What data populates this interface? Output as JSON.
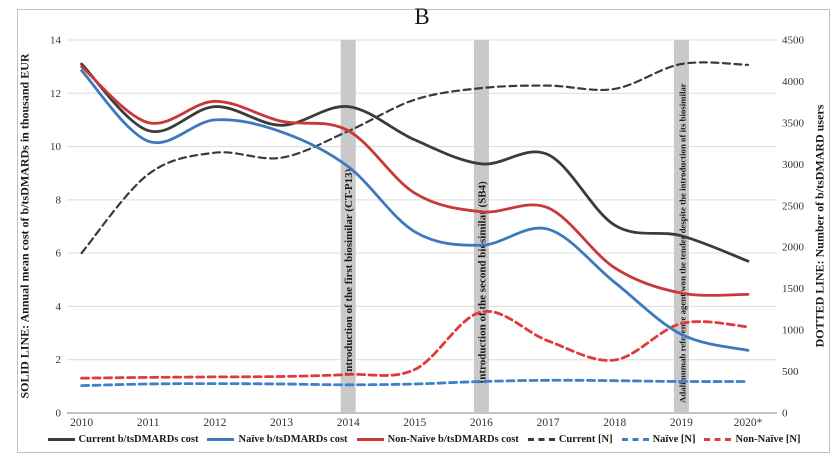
{
  "chart_data": {
    "type": "line",
    "title": "B",
    "left_axis": {
      "label": "SOLID LINE: Annual mean cost of b/tsDMARDs in thousand EUR",
      "ticks": [
        "0",
        "2",
        "4",
        "6",
        "8",
        "10",
        "12",
        "14"
      ],
      "lim": [
        0,
        14
      ]
    },
    "right_axis": {
      "label": "DOTTED LINE: Number of b/tsDMARD users",
      "ticks": [
        "0",
        "500",
        "1000",
        "1500",
        "2000",
        "2500",
        "3000",
        "3500",
        "4000",
        "4500"
      ],
      "lim": [
        0,
        4500
      ]
    },
    "x": [
      "2010",
      "2011",
      "2012",
      "2013",
      "2014",
      "2015",
      "2016",
      "2017",
      "2018",
      "2019",
      "2020*"
    ],
    "grid": true,
    "legend_position": "bottom",
    "annotations": [
      {
        "year": "2014",
        "label": "Introduction of the first biosimilar (CT-P13)"
      },
      {
        "year": "2016",
        "label": "Introduction of the second biosimilar (SB4)"
      },
      {
        "year": "2019",
        "label": "Adalimumab reference agent won the tender despite the introduction of its biosimilar"
      }
    ],
    "series": [
      {
        "name": "Current b/tsDMARDs cost",
        "axis": "left",
        "line": "solid",
        "color": "#3b3b3b",
        "values": [
          13.1,
          10.6,
          11.5,
          10.8,
          11.5,
          10.25,
          9.35,
          9.7,
          7.05,
          6.65,
          5.7
        ]
      },
      {
        "name": "Naïve b/tsDMARDs cost",
        "axis": "left",
        "line": "solid",
        "color": "#3c79bd",
        "values": [
          12.85,
          10.2,
          11.0,
          10.55,
          9.25,
          6.8,
          6.3,
          6.9,
          4.9,
          2.95,
          2.35
        ]
      },
      {
        "name": "Non-Naïve b/tsDMARDs cost",
        "axis": "left",
        "line": "solid",
        "color": "#c9383a",
        "values": [
          13.0,
          10.9,
          11.7,
          10.95,
          10.6,
          8.25,
          7.55,
          7.7,
          5.45,
          4.5,
          4.45
        ]
      },
      {
        "name": "Current [N]",
        "axis": "right",
        "line": "dashed",
        "color": "#3b3b3b",
        "values": [
          1930,
          2880,
          3140,
          3080,
          3400,
          3780,
          3920,
          3950,
          3910,
          4210,
          4200
        ]
      },
      {
        "name": "Naïve [N]",
        "axis": "right",
        "line": "dashed",
        "color": "#3f7fc8",
        "values": [
          330,
          350,
          355,
          350,
          340,
          350,
          380,
          395,
          390,
          380,
          380
        ]
      },
      {
        "name": "Non-Naïve [N]",
        "axis": "right",
        "line": "dashed",
        "color": "#e03a3c",
        "values": [
          420,
          430,
          435,
          440,
          465,
          525,
          1220,
          870,
          640,
          1080,
          1040
        ]
      }
    ],
    "colors": {
      "bar": "#c9c9c9",
      "gridline": "#dcdcdc",
      "axis_line": "#9e9e9e",
      "frame": "#c0c0c0",
      "text": "#1a1a1a"
    }
  }
}
